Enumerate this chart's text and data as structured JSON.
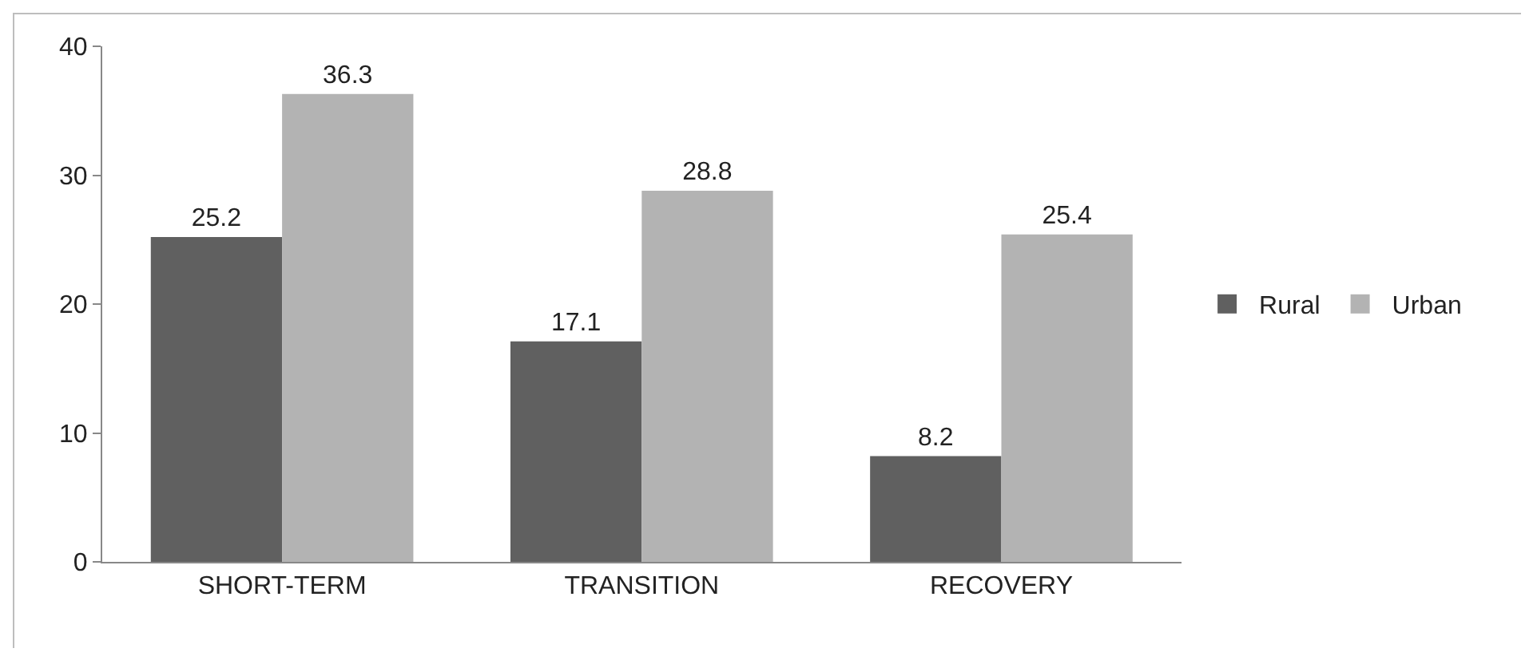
{
  "chart_data": {
    "type": "bar",
    "categories": [
      "SHORT-TERM",
      "TRANSITION",
      "RECOVERY"
    ],
    "series": [
      {
        "name": "Rural",
        "color": "#606060",
        "values": [
          25.2,
          17.1,
          8.2
        ]
      },
      {
        "name": "Urban",
        "color": "#b3b3b3",
        "values": [
          36.3,
          28.8,
          25.4
        ]
      }
    ],
    "ylim": [
      0,
      40
    ],
    "yticks": [
      0,
      10,
      20,
      30,
      40
    ],
    "grid": false,
    "legend": "right",
    "data_labels": true
  }
}
